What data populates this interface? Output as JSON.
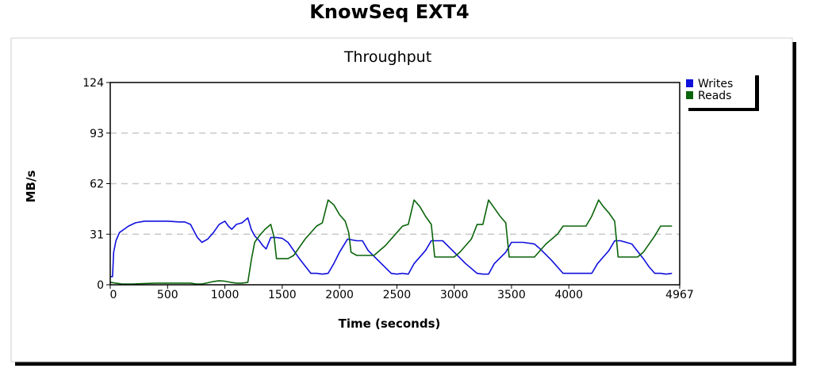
{
  "page_title": "KnowSeq EXT4",
  "colors": {
    "writes": "#1010dd",
    "reads": "#0a640a",
    "grid": "#c8c8c8",
    "panel_shadow": "#000000"
  },
  "chart_data": {
    "type": "line",
    "title": "Throughput",
    "xlabel": "Time (seconds)",
    "ylabel": "MB/s",
    "xlim": [
      0,
      4967
    ],
    "ylim": [
      0,
      124
    ],
    "x_ticks": [
      0,
      500,
      1000,
      1500,
      2000,
      2500,
      3000,
      3500,
      4000,
      4967
    ],
    "y_ticks": [
      0,
      31,
      62,
      93,
      124
    ],
    "grid": "horizontal dashed",
    "legend_position": "right",
    "series": [
      {
        "name": "Writes",
        "color": "#1010dd",
        "points": [
          [
            0,
            5
          ],
          [
            20,
            5
          ],
          [
            30,
            20
          ],
          [
            50,
            27
          ],
          [
            80,
            32
          ],
          [
            120,
            34
          ],
          [
            160,
            36
          ],
          [
            220,
            38
          ],
          [
            300,
            39
          ],
          [
            400,
            39
          ],
          [
            500,
            39
          ],
          [
            600,
            38.5
          ],
          [
            650,
            38.5
          ],
          [
            700,
            37
          ],
          [
            730,
            33
          ],
          [
            760,
            29
          ],
          [
            800,
            26
          ],
          [
            850,
            28
          ],
          [
            900,
            32
          ],
          [
            950,
            37
          ],
          [
            1000,
            39
          ],
          [
            1030,
            36
          ],
          [
            1060,
            34
          ],
          [
            1100,
            37
          ],
          [
            1150,
            38
          ],
          [
            1200,
            41
          ],
          [
            1230,
            34
          ],
          [
            1260,
            30
          ],
          [
            1300,
            27
          ],
          [
            1330,
            24
          ],
          [
            1360,
            22
          ],
          [
            1400,
            29
          ],
          [
            1450,
            29
          ],
          [
            1500,
            28.5
          ],
          [
            1550,
            26
          ],
          [
            1650,
            16
          ],
          [
            1750,
            7
          ],
          [
            1800,
            7
          ],
          [
            1850,
            6.5
          ],
          [
            1900,
            7
          ],
          [
            1950,
            13
          ],
          [
            2000,
            20
          ],
          [
            2070,
            28
          ],
          [
            2150,
            27
          ],
          [
            2200,
            27
          ],
          [
            2250,
            21
          ],
          [
            2350,
            14
          ],
          [
            2450,
            7
          ],
          [
            2500,
            6.5
          ],
          [
            2550,
            7
          ],
          [
            2600,
            6.5
          ],
          [
            2650,
            13
          ],
          [
            2750,
            21
          ],
          [
            2800,
            27
          ],
          [
            2900,
            27
          ],
          [
            3000,
            20
          ],
          [
            3100,
            13
          ],
          [
            3200,
            7
          ],
          [
            3250,
            6.5
          ],
          [
            3300,
            6.5
          ],
          [
            3350,
            13
          ],
          [
            3450,
            20
          ],
          [
            3500,
            26
          ],
          [
            3600,
            26
          ],
          [
            3700,
            25
          ],
          [
            3750,
            22
          ],
          [
            3850,
            15
          ],
          [
            3950,
            7
          ],
          [
            4050,
            7
          ],
          [
            4100,
            7
          ],
          [
            4150,
            7
          ],
          [
            4200,
            7
          ],
          [
            4250,
            13
          ],
          [
            4350,
            21
          ],
          [
            4400,
            27
          ],
          [
            4450,
            27
          ],
          [
            4500,
            26
          ],
          [
            4550,
            25
          ],
          [
            4650,
            16
          ],
          [
            4700,
            11
          ],
          [
            4750,
            7
          ],
          [
            4800,
            7
          ],
          [
            4850,
            6.5
          ],
          [
            4900,
            7
          ]
        ]
      },
      {
        "name": "Reads",
        "color": "#0a640a",
        "points": [
          [
            0,
            1.5
          ],
          [
            50,
            1
          ],
          [
            100,
            0.5
          ],
          [
            200,
            0.5
          ],
          [
            300,
            0.8
          ],
          [
            400,
            1
          ],
          [
            500,
            1
          ],
          [
            600,
            1
          ],
          [
            650,
            1
          ],
          [
            700,
            1
          ],
          [
            750,
            0.5
          ],
          [
            800,
            0.5
          ],
          [
            850,
            1.2
          ],
          [
            900,
            2
          ],
          [
            950,
            2.5
          ],
          [
            1000,
            2.2
          ],
          [
            1050,
            1.5
          ],
          [
            1100,
            1
          ],
          [
            1150,
            1
          ],
          [
            1200,
            1.5
          ],
          [
            1230,
            15
          ],
          [
            1260,
            26
          ],
          [
            1300,
            30
          ],
          [
            1350,
            34
          ],
          [
            1400,
            37
          ],
          [
            1430,
            29
          ],
          [
            1450,
            16
          ],
          [
            1500,
            16
          ],
          [
            1550,
            16
          ],
          [
            1600,
            18
          ],
          [
            1700,
            28
          ],
          [
            1800,
            36
          ],
          [
            1850,
            38
          ],
          [
            1900,
            52
          ],
          [
            1950,
            49
          ],
          [
            2000,
            43
          ],
          [
            2050,
            39
          ],
          [
            2080,
            32
          ],
          [
            2100,
            20
          ],
          [
            2150,
            18
          ],
          [
            2200,
            18
          ],
          [
            2300,
            18
          ],
          [
            2400,
            24
          ],
          [
            2500,
            32
          ],
          [
            2550,
            36
          ],
          [
            2600,
            37
          ],
          [
            2650,
            52
          ],
          [
            2700,
            48
          ],
          [
            2750,
            42
          ],
          [
            2800,
            37
          ],
          [
            2830,
            17
          ],
          [
            2900,
            17
          ],
          [
            3000,
            17
          ],
          [
            3050,
            20
          ],
          [
            3150,
            28
          ],
          [
            3200,
            37
          ],
          [
            3250,
            37
          ],
          [
            3300,
            52
          ],
          [
            3350,
            47
          ],
          [
            3400,
            42
          ],
          [
            3450,
            38
          ],
          [
            3480,
            17
          ],
          [
            3550,
            17
          ],
          [
            3650,
            17
          ],
          [
            3700,
            17
          ],
          [
            3800,
            25
          ],
          [
            3900,
            31
          ],
          [
            3950,
            36
          ],
          [
            4050,
            36
          ],
          [
            4150,
            36
          ],
          [
            4200,
            42
          ],
          [
            4260,
            52
          ],
          [
            4300,
            48
          ],
          [
            4350,
            44
          ],
          [
            4400,
            39
          ],
          [
            4430,
            17
          ],
          [
            4500,
            17
          ],
          [
            4600,
            17
          ],
          [
            4650,
            20
          ],
          [
            4750,
            30
          ],
          [
            4800,
            36
          ],
          [
            4850,
            36
          ],
          [
            4900,
            36
          ]
        ]
      }
    ]
  }
}
